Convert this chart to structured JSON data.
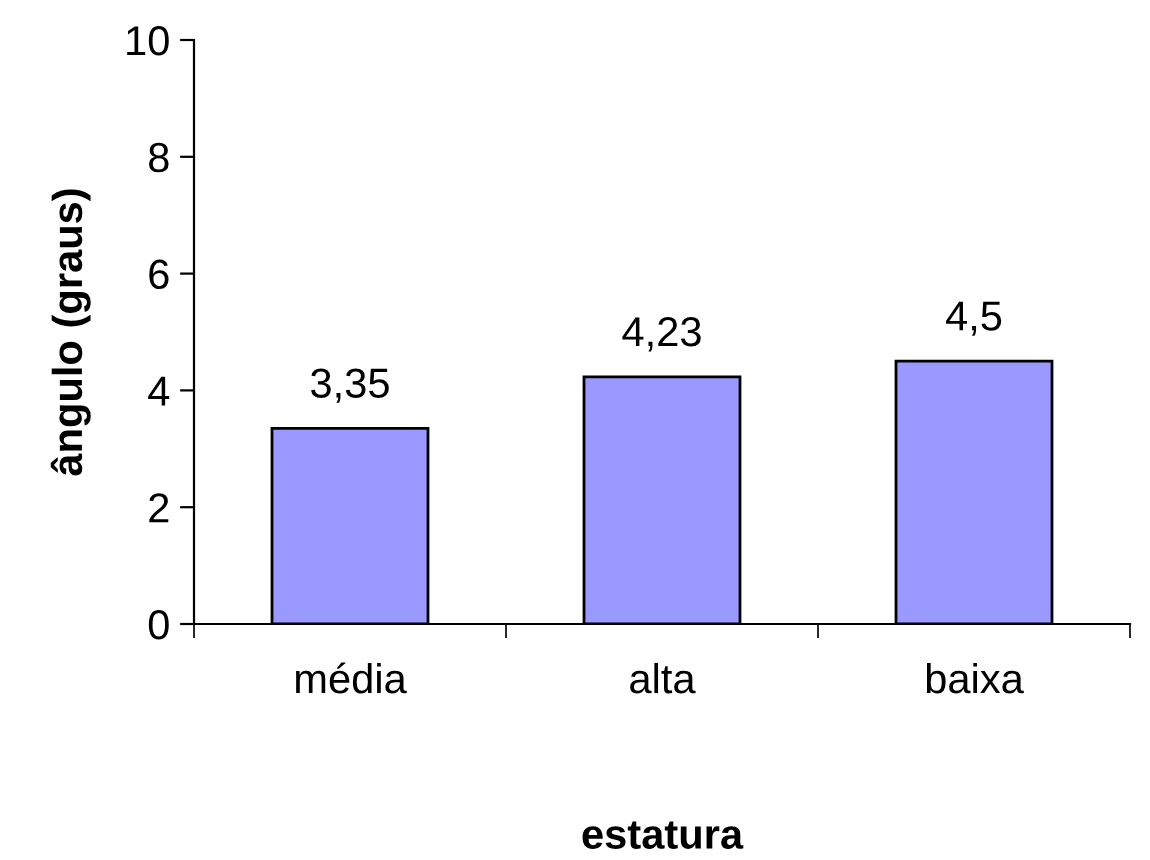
{
  "chart_data": {
    "type": "bar",
    "xlabel": "estatura",
    "ylabel": "ângulo (graus)",
    "categories": [
      "média",
      "alta",
      "baixa"
    ],
    "values": [
      3.35,
      4.23,
      4.5
    ],
    "value_labels": [
      "3,35",
      "4,23",
      "4,5"
    ],
    "color": "#9999ff",
    "ylim": [
      0,
      10
    ],
    "yticks": [
      0,
      2,
      4,
      6,
      8,
      10
    ],
    "grid": false
  }
}
